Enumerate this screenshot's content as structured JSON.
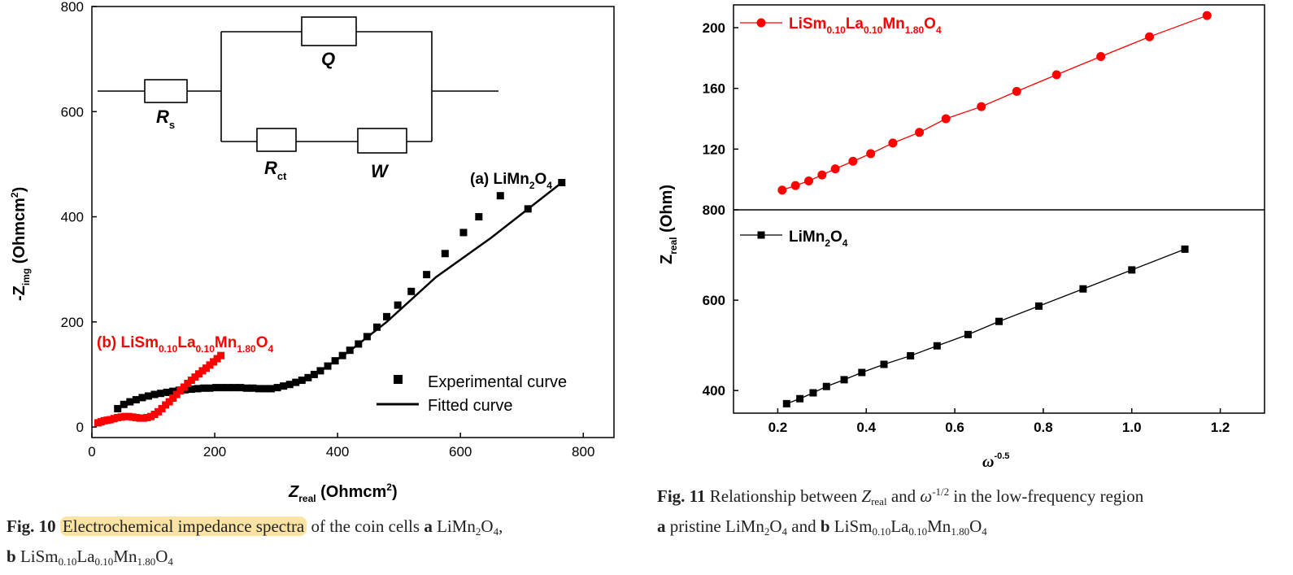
{
  "chart_data": [
    {
      "type": "scatter",
      "title": "",
      "xlabel": "Z_real (Ohmcm²)",
      "ylabel": "-Z_img (Ohmcm²)",
      "xlim": [
        0,
        850
      ],
      "ylim": [
        -20,
        800
      ],
      "xticks": [
        0,
        200,
        400,
        600,
        800
      ],
      "yticks": [
        0,
        200,
        400,
        600,
        800
      ],
      "legend": {
        "position": "bottom-right",
        "entries": [
          "Experimental curve",
          "Fitted curve"
        ]
      },
      "circuit_labels": {
        "Q": "Q",
        "Rs": "R",
        "Rs_sub": "s",
        "Rct": "R",
        "Rct_sub": "ct",
        "W": "W"
      },
      "series": [
        {
          "name": "(a) LiMn2O4",
          "color": "#000000",
          "marker": "square",
          "x": [
            42,
            52,
            62,
            72,
            82,
            92,
            102,
            112,
            122,
            132,
            142,
            152,
            162,
            172,
            182,
            192,
            202,
            212,
            222,
            232,
            242,
            252,
            262,
            272,
            282,
            292,
            302,
            312,
            322,
            332,
            342,
            352,
            362,
            372,
            384,
            396,
            408,
            420,
            434,
            448,
            464,
            480,
            498,
            520,
            545,
            575,
            605,
            630,
            665,
            710,
            765
          ],
          "y": [
            35,
            43,
            48,
            52,
            56,
            59,
            62,
            64,
            66,
            68,
            70,
            71,
            72,
            73,
            74,
            74,
            75,
            75,
            75,
            75,
            75,
            74,
            74,
            73,
            73,
            73,
            75,
            78,
            81,
            85,
            89,
            94,
            100,
            107,
            116,
            126,
            136,
            146,
            158,
            172,
            190,
            210,
            232,
            258,
            290,
            330,
            370,
            400,
            440,
            415,
            465
          ]
        },
        {
          "name": "(b) LiSm0.10La0.10Mn1.80O4",
          "color": "#ff0000",
          "marker": "square",
          "x": [
            10,
            15,
            20,
            25,
            30,
            36,
            42,
            48,
            54,
            60,
            66,
            72,
            78,
            84,
            90,
            96,
            102,
            108,
            114,
            120,
            126,
            132,
            138,
            144,
            150,
            156,
            162,
            168,
            174,
            180,
            186,
            192,
            198,
            204,
            210
          ],
          "y": [
            8,
            10,
            12,
            13,
            14,
            16,
            18,
            19,
            20,
            20,
            19,
            18,
            17,
            17,
            18,
            20,
            24,
            29,
            35,
            42,
            48,
            55,
            62,
            69,
            76,
            83,
            89,
            95,
            101,
            107,
            112,
            118,
            124,
            130,
            136
          ]
        }
      ],
      "fitted_curve": {
        "x": [
          40,
          80,
          120,
          160,
          200,
          240,
          280,
          320,
          360,
          420,
          480,
          560,
          650,
          765
        ],
        "y": [
          34,
          53,
          65,
          72,
          75,
          75,
          73,
          77,
          97,
          145,
          200,
          285,
          360,
          465
        ]
      }
    },
    {
      "type": "scatter",
      "panel": "top",
      "xlabel": "",
      "ylabel": "Z_real (Ohm)",
      "ylim": [
        80,
        215
      ],
      "yticks": [
        120,
        160,
        200
      ],
      "legend": {
        "position": "top-left",
        "entries": [
          "LiSm0.10La0.10Mn1.80O4"
        ]
      },
      "series": [
        {
          "name": "LiSm0.10La0.10Mn1.80O4",
          "color": "#ff0000",
          "marker": "circle",
          "x": [
            0.21,
            0.24,
            0.27,
            0.3,
            0.33,
            0.37,
            0.41,
            0.46,
            0.52,
            0.58,
            0.66,
            0.74,
            0.83,
            0.93,
            1.04,
            1.17
          ],
          "y": [
            93,
            96,
            99,
            103,
            107,
            112,
            117,
            124,
            131,
            140,
            148,
            158,
            169,
            181,
            194,
            208
          ]
        }
      ]
    },
    {
      "type": "scatter",
      "panel": "bottom",
      "xlabel": "ω^-0.5",
      "ylabel": "Z_real (Ohm)",
      "xlim": [
        0.1,
        1.3
      ],
      "xticks": [
        0.2,
        0.4,
        0.6,
        0.8,
        1.0,
        1.2
      ],
      "ylim": [
        350,
        800
      ],
      "yticks": [
        400,
        600,
        800
      ],
      "legend": {
        "position": "top-left",
        "entries": [
          "LiMn2O4"
        ]
      },
      "series": [
        {
          "name": "LiMn2O4",
          "color": "#000000",
          "marker": "square",
          "x": [
            0.22,
            0.25,
            0.28,
            0.31,
            0.35,
            0.39,
            0.44,
            0.5,
            0.56,
            0.63,
            0.7,
            0.79,
            0.89,
            1.0,
            1.12
          ],
          "y": [
            371,
            382,
            395,
            409,
            424,
            440,
            458,
            477,
            499,
            524,
            553,
            587,
            625,
            667,
            713
          ]
        }
      ]
    }
  ],
  "captions": {
    "fig10_label": "Fig. 10",
    "fig10_highlight": "Electrochemical impedance spectra",
    "fig10_rest": "of the coin cells",
    "fig10_a": "a",
    "fig10_b": "b",
    "fig11_label": "Fig. 11",
    "fig11_text": "Relationship between",
    "fig11_text2": "and",
    "fig11_text3": "in the low-frequency region",
    "fig11_a": "a",
    "fig11_pristine": "pristine",
    "fig11_b": "b"
  }
}
